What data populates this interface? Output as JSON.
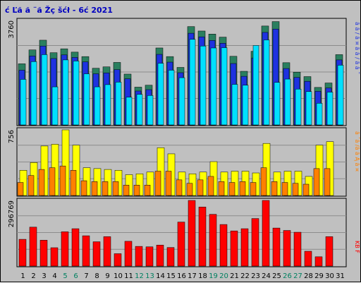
{
  "chart_data": {
    "type": "bar",
    "title": "ć Ľă  ă ¨ă Žç šćł  - 6ć   2021",
    "x": [
      "1",
      "2",
      "3",
      "4",
      "5",
      "6",
      "7",
      "8",
      "9",
      "10",
      "11",
      "12",
      "13",
      "14",
      "15",
      "16",
      "17",
      "18",
      "19",
      "20",
      "21",
      "22",
      "23",
      "24",
      "25",
      "26",
      "27",
      "28",
      "29",
      "30",
      "31"
    ],
    "weekend_days": [
      "5",
      "6",
      "12",
      "13",
      "19",
      "20",
      "26",
      "27"
    ],
    "panels": [
      {
        "id": "top",
        "axis_max_label": "3760",
        "ylim": [
          0,
          3760
        ],
        "legend": "ă ă   / ă ¤ ă  ă  / ă ă ˘",
        "series": [
          {
            "name": "dark-green",
            "color": "#2a7f5f",
            "values": [
              2200,
              2700,
              3050,
              2600,
              2740,
              2620,
              2460,
              2040,
              2090,
              2250,
              1830,
              1360,
              1430,
              2770,
              2460,
              2070,
              3540,
              3380,
              3270,
              3160,
              2470,
              1930,
              2650,
              3560,
              3720,
              2240,
              1900,
              1740,
              1350,
              1510,
              2530
            ]
          },
          {
            "name": "blue",
            "color": "#1e32e0",
            "values": [
              1970,
              2480,
              2840,
              2390,
              2520,
              2430,
              2270,
              1840,
              1870,
              1990,
              1660,
              1220,
              1270,
              2540,
              2260,
              1880,
              3300,
              3170,
              3040,
              2940,
              2210,
              1750,
              2410,
              3330,
              3450,
              2030,
              1710,
              1570,
              1210,
              1330,
              2340
            ]
          },
          {
            "name": "cyan",
            "color": "#00e0ff",
            "values": [
              1640,
              2280,
              2530,
              1370,
              2340,
              2300,
              1840,
              1370,
              1450,
              1540,
              1000,
              1100,
              1060,
              2220,
              1970,
              1700,
              3080,
              2840,
              2770,
              2780,
              1460,
              1430,
              2860,
              3060,
              1530,
              1650,
              1290,
              1200,
              780,
              1180,
              2150
            ]
          }
        ]
      },
      {
        "id": "middle",
        "axis_max_label": "756",
        "ylim": [
          0,
          756
        ],
        "legend": "ă ˇă    /ă ă Ą ă ¤",
        "series": [
          {
            "name": "yellow",
            "color": "#ffff00",
            "values": [
              290,
              380,
              570,
              590,
              756,
              580,
              320,
              310,
              300,
              290,
              240,
              250,
              270,
              550,
              480,
              270,
              250,
              270,
              390,
              270,
              280,
              280,
              260,
              600,
              270,
              280,
              280,
              220,
              580,
              620,
              0
            ]
          },
          {
            "name": "orange",
            "color": "#ff8000",
            "values": [
              150,
              230,
              300,
              320,
              340,
              290,
              170,
              160,
              160,
              160,
              120,
              120,
              120,
              280,
              280,
              180,
              140,
              180,
              220,
              160,
              150,
              160,
              150,
              320,
              160,
              150,
              140,
              130,
              310,
              310,
              0
            ]
          }
        ]
      },
      {
        "id": "bottom",
        "axis_max_label": "296769",
        "ylim": [
          0,
          296769
        ],
        "legend": "KB F",
        "series": [
          {
            "name": "red",
            "color": "#ff0000",
            "values": [
              121000,
              176000,
              117000,
              83000,
              155000,
              169000,
              137000,
              110000,
              133000,
              56000,
              112000,
              89000,
              87000,
              95000,
              84000,
              199000,
              296769,
              267000,
              234000,
              188000,
              159000,
              169000,
              215000,
              296769,
              172000,
              161000,
              153000,
              67000,
              42000,
              133000,
              0
            ]
          }
        ]
      }
    ]
  }
}
